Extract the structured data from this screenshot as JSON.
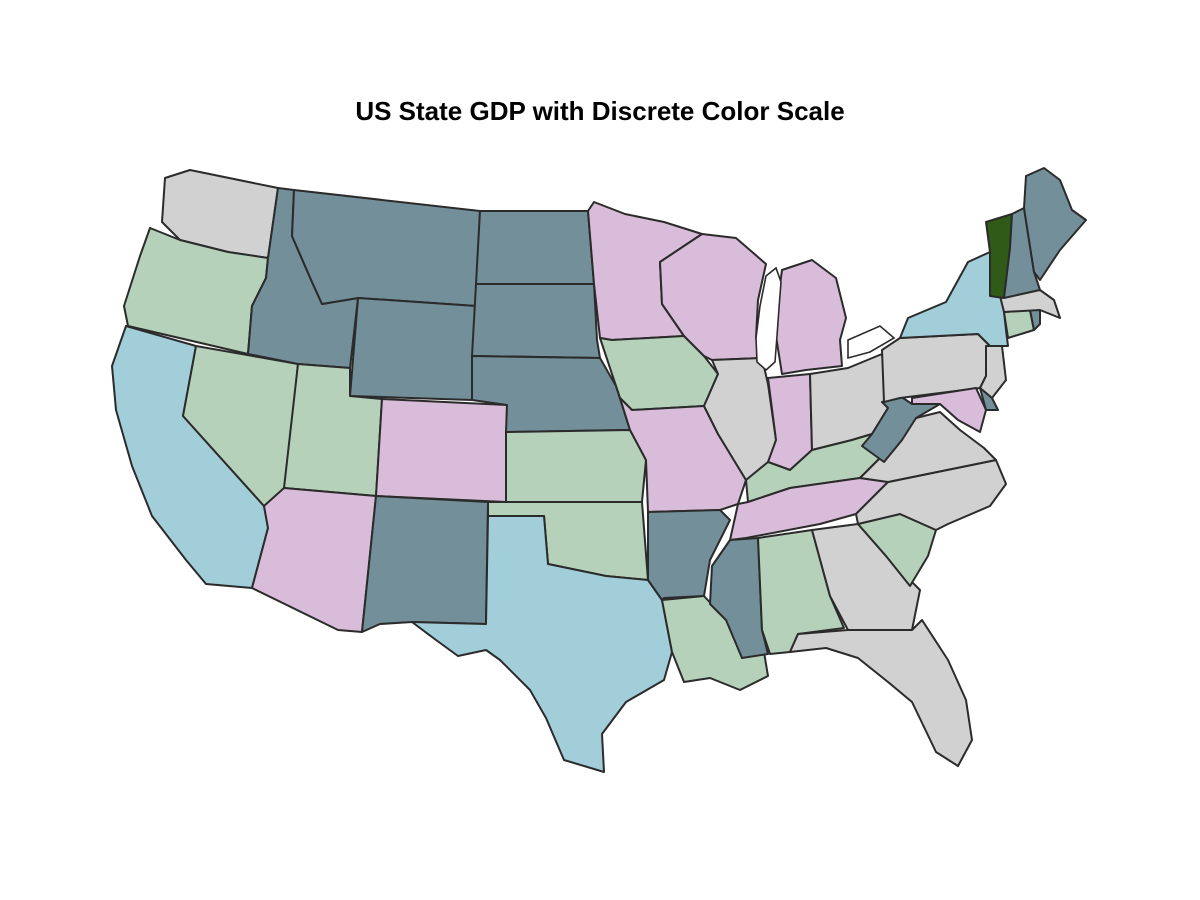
{
  "title": "US State GDP with Discrete Color Scale",
  "colors": {
    "teal": "#738f99",
    "green": "#b5d1b9",
    "pink": "#d8bcd9",
    "gray": "#d1d1d1",
    "blue": "#a2ceda",
    "dark_green": "#305a17"
  },
  "states": [
    {
      "name": "Washington",
      "color": "gray"
    },
    {
      "name": "Oregon",
      "color": "green"
    },
    {
      "name": "California",
      "color": "blue"
    },
    {
      "name": "Nevada",
      "color": "green"
    },
    {
      "name": "Idaho",
      "color": "teal"
    },
    {
      "name": "Montana",
      "color": "teal"
    },
    {
      "name": "Wyoming",
      "color": "teal"
    },
    {
      "name": "Utah",
      "color": "green"
    },
    {
      "name": "Arizona",
      "color": "pink"
    },
    {
      "name": "Colorado",
      "color": "pink"
    },
    {
      "name": "New Mexico",
      "color": "teal"
    },
    {
      "name": "North Dakota",
      "color": "teal"
    },
    {
      "name": "South Dakota",
      "color": "teal"
    },
    {
      "name": "Nebraska",
      "color": "teal"
    },
    {
      "name": "Kansas",
      "color": "green"
    },
    {
      "name": "Oklahoma",
      "color": "green"
    },
    {
      "name": "Texas",
      "color": "blue"
    },
    {
      "name": "Minnesota",
      "color": "pink"
    },
    {
      "name": "Iowa",
      "color": "green"
    },
    {
      "name": "Missouri",
      "color": "pink"
    },
    {
      "name": "Arkansas",
      "color": "teal"
    },
    {
      "name": "Louisiana",
      "color": "green"
    },
    {
      "name": "Wisconsin",
      "color": "pink"
    },
    {
      "name": "Illinois",
      "color": "gray"
    },
    {
      "name": "Michigan",
      "color": "pink"
    },
    {
      "name": "Indiana",
      "color": "pink"
    },
    {
      "name": "Ohio",
      "color": "gray"
    },
    {
      "name": "Kentucky",
      "color": "green"
    },
    {
      "name": "Tennessee",
      "color": "pink"
    },
    {
      "name": "Mississippi",
      "color": "teal"
    },
    {
      "name": "Alabama",
      "color": "green"
    },
    {
      "name": "Georgia",
      "color": "gray"
    },
    {
      "name": "Florida",
      "color": "gray"
    },
    {
      "name": "South Carolina",
      "color": "green"
    },
    {
      "name": "North Carolina",
      "color": "gray"
    },
    {
      "name": "Virginia",
      "color": "gray"
    },
    {
      "name": "West Virginia",
      "color": "teal"
    },
    {
      "name": "Pennsylvania",
      "color": "gray"
    },
    {
      "name": "New York",
      "color": "blue"
    },
    {
      "name": "New Jersey",
      "color": "gray"
    },
    {
      "name": "Delaware",
      "color": "teal"
    },
    {
      "name": "Maryland",
      "color": "pink"
    },
    {
      "name": "Connecticut",
      "color": "green"
    },
    {
      "name": "Rhode Island",
      "color": "teal"
    },
    {
      "name": "Massachusetts",
      "color": "gray"
    },
    {
      "name": "Vermont",
      "color": "dark_green"
    },
    {
      "name": "New Hampshire",
      "color": "teal"
    },
    {
      "name": "Maine",
      "color": "teal"
    }
  ]
}
